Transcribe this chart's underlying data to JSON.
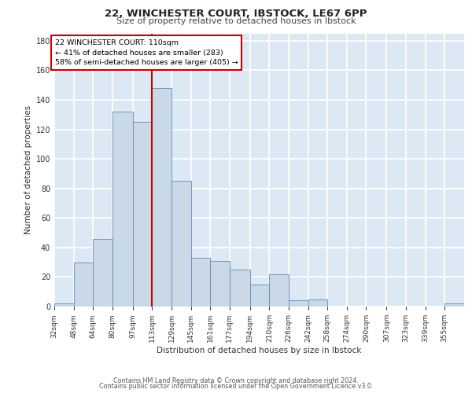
{
  "title1": "22, WINCHESTER COURT, IBSTOCK, LE67 6PP",
  "title2": "Size of property relative to detached houses in Ibstock",
  "xlabel": "Distribution of detached houses by size in Ibstock",
  "ylabel": "Number of detached properties",
  "bin_labels": [
    "32sqm",
    "48sqm",
    "64sqm",
    "80sqm",
    "97sqm",
    "113sqm",
    "129sqm",
    "145sqm",
    "161sqm",
    "177sqm",
    "194sqm",
    "210sqm",
    "226sqm",
    "242sqm",
    "258sqm",
    "274sqm",
    "290sqm",
    "307sqm",
    "323sqm",
    "339sqm",
    "355sqm"
  ],
  "bin_edges": [
    32,
    48,
    64,
    80,
    97,
    113,
    129,
    145,
    161,
    177,
    194,
    210,
    226,
    242,
    258,
    274,
    290,
    307,
    323,
    339,
    355
  ],
  "bar_heights": [
    2,
    30,
    46,
    132,
    125,
    148,
    85,
    33,
    31,
    25,
    15,
    22,
    4,
    5,
    0,
    0,
    0,
    0,
    0,
    0,
    2
  ],
  "bar_color": "#c9d9e8",
  "bar_edge_color": "#5b8db8",
  "background_color": "#dde8f5",
  "grid_color": "#ffffff",
  "red_line_x": 113,
  "annotation_text": "22 WINCHESTER COURT: 110sqm\n← 41% of detached houses are smaller (283)\n58% of semi-detached houses are larger (405) →",
  "annotation_box_color": "#ffffff",
  "annotation_box_edge": "#cc0000",
  "ylim": [
    0,
    185
  ],
  "yticks": [
    0,
    20,
    40,
    60,
    80,
    100,
    120,
    140,
    160,
    180
  ],
  "footer1": "Contains HM Land Registry data © Crown copyright and database right 2024.",
  "footer2": "Contains public sector information licensed under the Open Government Licence v3.0."
}
